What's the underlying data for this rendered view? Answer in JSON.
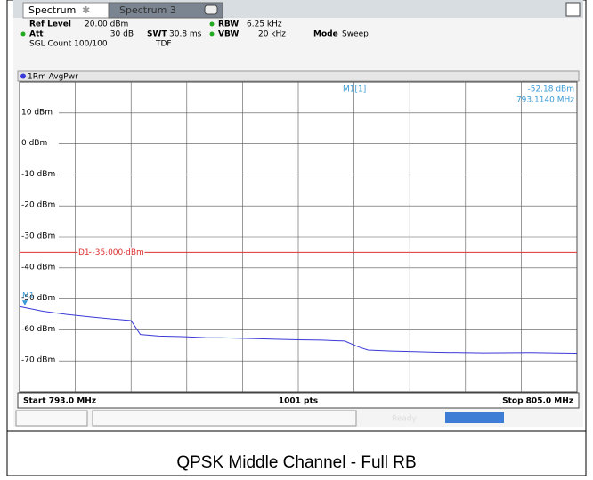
{
  "chart_data": {
    "type": "line",
    "tabs": [
      "Spectrum",
      "Spectrum 3"
    ],
    "settings": {
      "ref_level": [
        "Ref Level",
        "20.00 dBm"
      ],
      "att": [
        "Att",
        "30 dB"
      ],
      "swt": [
        "SWT",
        "30.8 ms"
      ],
      "rbw": [
        "RBW",
        "6.25 kHz"
      ],
      "vbw": [
        "VBW",
        "20 kHz"
      ],
      "mode": [
        "Mode",
        "Sweep"
      ],
      "count": "SGL Count 100/100",
      "tdf": "TDF"
    },
    "trace_label": "1Rm AvgPwr",
    "marker": {
      "label": "M1",
      "x": 793.114,
      "y": -52.18,
      "readout": "M1[1]",
      "value_label": "-52.18 dBm",
      "freq_label": "793.1140 MHz"
    },
    "display_line": {
      "value": -35,
      "label": "D1 -35.000 dBm"
    },
    "x": [
      793.0,
      793.5,
      794.0,
      794.5,
      795.0,
      795.4,
      795.6,
      796.0,
      796.5,
      797.0,
      797.5,
      798.0,
      798.5,
      799.0,
      799.5,
      800.0,
      800.3,
      800.5,
      801.0,
      801.5,
      802.0,
      803.0,
      804.0,
      805.0
    ],
    "series": [
      {
        "color": "#3a3ad6",
        "values": [
          -52.5,
          -54.0,
          -55.0,
          -55.8,
          -56.5,
          -57.0,
          -61.5,
          -62.0,
          -62.2,
          -62.5,
          -62.6,
          -62.8,
          -63.0,
          -63.2,
          -63.3,
          -63.6,
          -65.5,
          -66.5,
          -66.8,
          -67.0,
          -67.2,
          -67.4,
          -67.3,
          -67.5
        ]
      }
    ],
    "xlim": [
      793,
      805
    ],
    "xticks": [
      793,
      794.2,
      795.4,
      796.6,
      797.8,
      799,
      800.2,
      801.4,
      802.6,
      803.8,
      805
    ],
    "ylim": [
      -80,
      20
    ],
    "yticks": [
      {
        "value": 10,
        "label": "10 dBm"
      },
      {
        "value": 0,
        "label": "0 dBm"
      },
      {
        "value": -10,
        "label": "-10 dBm"
      },
      {
        "value": -20,
        "label": "-20 dBm"
      },
      {
        "value": -30,
        "label": "-30 dBm"
      },
      {
        "value": -40,
        "label": "-40 dBm"
      },
      {
        "value": -50,
        "label": "-50 dBm"
      },
      {
        "value": -60,
        "label": "-60 dBm"
      },
      {
        "value": -70,
        "label": "-70 dBm"
      }
    ],
    "grid": true,
    "start_label": "Start 793.0 MHz",
    "points_label": "1001 pts",
    "stop_label": "Stop 805.0 MHz",
    "status": "Ready",
    "caption": "QPSK Middle Channel - Full RB"
  }
}
